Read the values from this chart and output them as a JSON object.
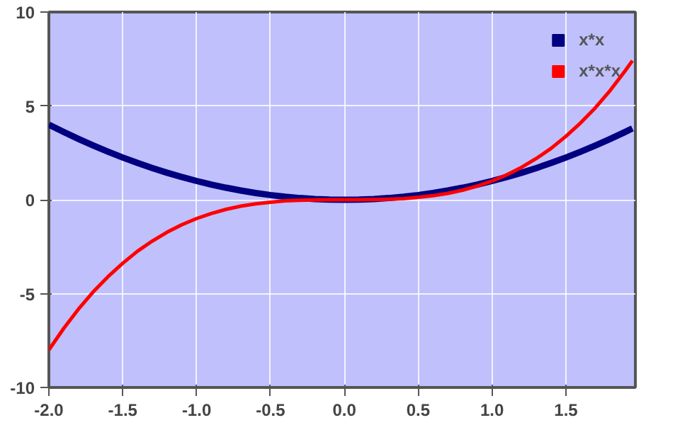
{
  "chart_data": {
    "type": "line",
    "x": [
      -2.0,
      -1.9,
      -1.8,
      -1.7,
      -1.6,
      -1.5,
      -1.4,
      -1.3,
      -1.2,
      -1.1,
      -1.0,
      -0.9,
      -0.8,
      -0.7,
      -0.6,
      -0.5,
      -0.4,
      -0.3,
      -0.2,
      -0.1,
      0.0,
      0.1,
      0.2,
      0.3,
      0.4,
      0.5,
      0.6,
      0.7,
      0.8,
      0.9,
      1.0,
      1.1,
      1.2,
      1.3,
      1.4,
      1.5,
      1.6,
      1.7,
      1.8,
      1.9,
      1.95
    ],
    "series": [
      {
        "name": "x*x",
        "color": "#000080",
        "values": [
          4.0,
          3.61,
          3.24,
          2.89,
          2.56,
          2.25,
          1.96,
          1.69,
          1.44,
          1.21,
          1.0,
          0.81,
          0.64,
          0.49,
          0.36,
          0.25,
          0.16,
          0.09,
          0.04,
          0.01,
          0.0,
          0.01,
          0.04,
          0.09,
          0.16,
          0.25,
          0.36,
          0.49,
          0.64,
          0.81,
          1.0,
          1.21,
          1.44,
          1.69,
          1.96,
          2.25,
          2.56,
          2.89,
          3.24,
          3.61,
          3.8
        ]
      },
      {
        "name": "x*x*x",
        "color": "#ff0000",
        "values": [
          -8.0,
          -6.86,
          -5.83,
          -4.91,
          -4.1,
          -3.38,
          -2.74,
          -2.2,
          -1.73,
          -1.33,
          -1.0,
          -0.73,
          -0.51,
          -0.34,
          -0.22,
          -0.13,
          -0.06,
          -0.03,
          -0.01,
          0.0,
          0.0,
          0.0,
          0.01,
          0.03,
          0.06,
          0.13,
          0.22,
          0.34,
          0.51,
          0.73,
          1.0,
          1.33,
          1.73,
          2.2,
          2.74,
          3.38,
          4.1,
          4.91,
          5.83,
          6.86,
          7.41
        ]
      }
    ],
    "xlim": [
      -2.0,
      1.97
    ],
    "ylim": [
      -10,
      10
    ],
    "xticks": [
      {
        "value": -2,
        "label": "-2.0"
      },
      {
        "value": -1.5,
        "label": "-1.5"
      },
      {
        "value": -1,
        "label": "-1.0"
      },
      {
        "value": -0.5,
        "label": "-0.5"
      },
      {
        "value": 0,
        "label": "0.0"
      },
      {
        "value": 0.5,
        "label": "0.5"
      },
      {
        "value": 1,
        "label": "1.0"
      },
      {
        "value": 1.5,
        "label": "1.5"
      }
    ],
    "yticks": [
      -10,
      -5,
      0,
      5,
      10
    ],
    "grid": true,
    "legend": "top right",
    "marker": "none",
    "line_style": "solid"
  }
}
